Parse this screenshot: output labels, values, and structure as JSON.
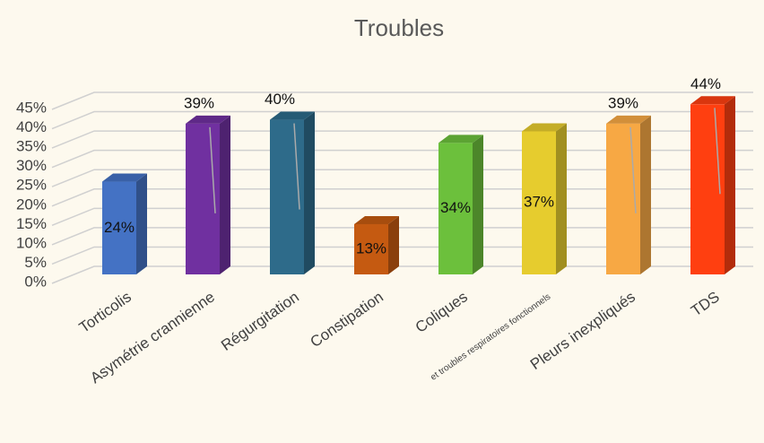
{
  "chart_data": {
    "type": "bar3d",
    "title": "Troubles",
    "categories": [
      "Torticolis",
      "Asymétrie crannienne",
      "Régurgitation",
      "Constipation",
      "Coliques",
      "et troubles respiratoires fonctionnels",
      "Pleurs inexpliqués",
      "TDS"
    ],
    "values": [
      24,
      39,
      40,
      13,
      34,
      37,
      39,
      44
    ],
    "value_labels": [
      "24%",
      "39%",
      "40%",
      "13%",
      "34%",
      "37%",
      "39%",
      "44%"
    ],
    "colors": [
      "#4472c4",
      "#7030a0",
      "#2e6b8a",
      "#c55a11",
      "#6cc03c",
      "#e6cc2e",
      "#f7a844",
      "#ff3f10"
    ],
    "ylim": [
      0,
      45
    ],
    "yticks": [
      {
        "value": 0,
        "label": "0%"
      },
      {
        "value": 5,
        "label": "5%"
      },
      {
        "value": 10,
        "label": "10%"
      },
      {
        "value": 15,
        "label": "15%"
      },
      {
        "value": 20,
        "label": "20%"
      },
      {
        "value": 25,
        "label": "25%"
      },
      {
        "value": 30,
        "label": "30%"
      },
      {
        "value": 35,
        "label": "35%"
      },
      {
        "value": 40,
        "label": "40%"
      },
      {
        "value": 45,
        "label": "45%"
      }
    ],
    "grid": true
  }
}
